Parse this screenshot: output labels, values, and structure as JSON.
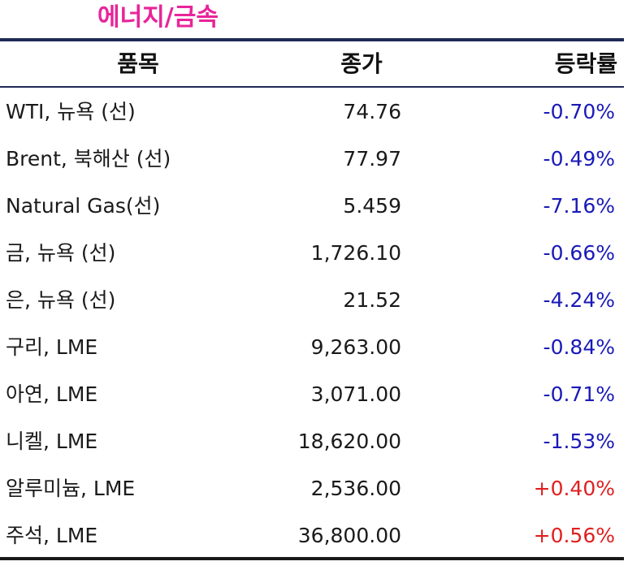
{
  "title": "에너지/금속",
  "colors": {
    "title": "#e8259a",
    "negative": "#1a1ab8",
    "positive": "#e02020",
    "rule": "#1f2a55"
  },
  "table": {
    "headers": {
      "name": "품목",
      "price": "종가",
      "change": "등락률"
    },
    "rows": [
      {
        "name": "WTI, 뉴욕 (선)",
        "price": "74.76",
        "change": "-0.70%"
      },
      {
        "name": "Brent, 북해산 (선)",
        "price": "77.97",
        "change": "-0.49%"
      },
      {
        "name": "Natural Gas(선)",
        "price": "5.459",
        "change": "-7.16%"
      },
      {
        "name": "금, 뉴욕  (선)",
        "price": "1,726.10",
        "change": "-0.66%"
      },
      {
        "name": "은, 뉴욕  (선)",
        "price": "21.52",
        "change": "-4.24%"
      },
      {
        "name": "구리, LME",
        "price": "9,263.00",
        "change": "-0.84%"
      },
      {
        "name": "아연, LME",
        "price": "3,071.00",
        "change": "-0.71%"
      },
      {
        "name": "니켈, LME",
        "price": "18,620.00",
        "change": "-1.53%"
      },
      {
        "name": "알루미늄, LME",
        "price": "2,536.00",
        "change": "+0.40%"
      },
      {
        "name": "주석, LME",
        "price": "36,800.00",
        "change": "+0.56%"
      }
    ]
  }
}
